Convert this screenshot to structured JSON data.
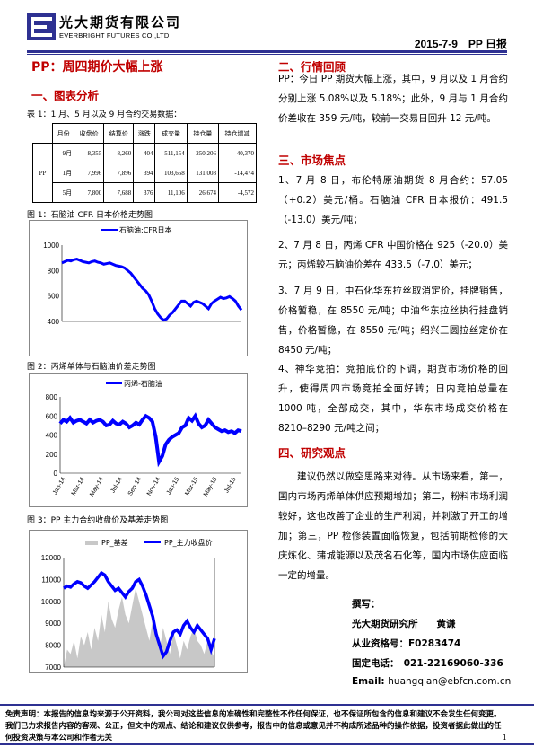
{
  "header": {
    "company_cn": "光大期货有限公司",
    "company_en": "EVERBRIGHT FUTURES CO.,LTD",
    "date_product": "2015-7-9　PP 日报"
  },
  "title": "PP：周四期价大幅上涨",
  "section1": {
    "heading": "一、图表分析",
    "table_caption": "表 1：1 月、5 月以及 9 月合约交易数据：",
    "table": {
      "headers": [
        "月份",
        "收盘价",
        "结算价",
        "涨跌",
        "成交量",
        "持仓量",
        "持仓增减"
      ],
      "row_label": "PP",
      "rows": [
        [
          "9月",
          "8,355",
          "8,260",
          "404",
          "511,154",
          "250,206",
          "-40,370"
        ],
        [
          "1月",
          "7,996",
          "7,896",
          "394",
          "103,658",
          "131,008",
          "-14,474"
        ],
        [
          "5月",
          "7,800",
          "7,688",
          "376",
          "11,106",
          "26,674",
          "-4,572"
        ]
      ]
    },
    "fig1_caption": "图 1：石脑油 CFR 日本价格走势图",
    "fig2_caption": "图 2：丙烯单体与石脑油价差走势图",
    "fig3_caption": "图 3：PP 主力合约收盘价及基差走势图"
  },
  "section2": {
    "heading": "二、行情回顾",
    "text": "PP：今日 PP 期货大幅上涨，其中，9 月以及 1 月合约分别上涨 5.08%以及 5.18%；此外，9 月与 1 月合约价差收在 359 元/吨，较前一交易日回升 12 元/吨。"
  },
  "section3": {
    "heading": "三、市场焦点",
    "items": [
      "1、7 月 8 日，布伦特原油期货 8 月合约：57.05（+0.2）美元/桶。石脑油 CFR 日本报价：491.5（-13.0）美元/吨；",
      "2、7 月 8 日，丙烯 CFR 中国价格在 925（-20.0）美元；丙烯较石脑油价差在 433.5（-7.0）美元；",
      "3、7 月 9 日，中石化华东拉丝取消定价，挂牌销售，价格暂稳，在 8550 元/吨；中油华东拉丝执行挂盘销售，价格暂稳，在 8550 元/吨；绍兴三圆拉丝定价在 8450 元/吨；",
      "4、神华竞拍：竞拍底价的下调，期货市场价格的回升，使得周四市场竞拍全面好转；日内竞拍总量在 1000 吨，全部成交，其中，华东市场成交价格在 8210–8290 元/吨之间；"
    ]
  },
  "section4": {
    "heading": "四、研究观点",
    "text": "建议仍然以做空思路来对待。从市场来看，第一，国内市场丙烯单体供应预期增加；第二，粉料市场利润较好，这也改善了企业的生产利润，并刺激了开工的增加；第三，PP 检修装置面临恢复，包括前期检修的大庆炼化、蒲城能源以及茂名石化等，国内市场供应面临一定的增量。"
  },
  "signature": {
    "label": "撰写：",
    "org": "光大期货研究所　　黄谦",
    "license": "从业资格号：F0283474",
    "phone": "固定电话：　021-22169060-336",
    "email_label": "Email:",
    "email": "huangqian@ebfcn.com.cn"
  },
  "footer": {
    "text": "免责声明：本报告的信息均来源于公开资料，我公司对这些信息的准确性和完整性不作任何保证，也不保证所包含的信息和建议不会发生任何变更。我们已力求报告内容的客观、公正，但文中的观点、结论和建议仅供参考，报告中的信息或意见并不构成所述品种的操作依据，投资者据此做出的任何投资决策与本公司和作者无关",
    "page": "1"
  },
  "chart_data": [
    {
      "type": "line",
      "legend": [
        "石脑油:CFR日本"
      ],
      "ylim": [
        400,
        1000
      ],
      "yticks": [
        400,
        600,
        800,
        1000
      ],
      "series": [
        {
          "name": "石脑油:CFR日本",
          "color": "#0000ff",
          "values": [
            860,
            870,
            880,
            875,
            885,
            890,
            880,
            870,
            865,
            860,
            870,
            875,
            865,
            860,
            850,
            855,
            860,
            850,
            840,
            835,
            830,
            820,
            800,
            780,
            750,
            720,
            690,
            660,
            640,
            610,
            560,
            500,
            460,
            430,
            410,
            420,
            450,
            470,
            500,
            530,
            560,
            560,
            540,
            520,
            550,
            560,
            550,
            540,
            520,
            500,
            540,
            560,
            575,
            590,
            580,
            585,
            595,
            580,
            560,
            520,
            490
          ]
        }
      ]
    },
    {
      "type": "line",
      "legend": [
        "丙烯-石脑油"
      ],
      "ylim": [
        0,
        800
      ],
      "yticks": [
        0,
        200,
        400,
        600,
        800
      ],
      "xticks": [
        "Jan-14",
        "Mar-14",
        "May-14",
        "Jul-14",
        "Sep-14",
        "Nov-14",
        "Jan-15",
        "Mar-15",
        "May-15",
        "Jul-15"
      ],
      "series": [
        {
          "name": "丙烯-石脑油",
          "color": "#0000ff",
          "values": [
            520,
            560,
            540,
            580,
            530,
            550,
            560,
            540,
            520,
            560,
            530,
            550,
            560,
            540,
            500,
            510,
            550,
            520,
            510,
            540,
            520,
            480,
            500,
            530,
            510,
            560,
            600,
            580,
            540,
            380,
            120,
            180,
            300,
            350,
            380,
            400,
            420,
            480,
            500,
            580,
            550,
            600,
            520,
            480,
            500,
            560,
            520,
            480,
            460,
            440,
            450,
            430,
            440,
            420,
            450,
            440
          ]
        }
      ]
    },
    {
      "type": "line",
      "legend": [
        "PP_基差",
        "PP_主力收盘价"
      ],
      "ylim": [
        7000,
        12000
      ],
      "yticks": [
        7000,
        8000,
        9000,
        10000,
        11000,
        12000
      ],
      "series": [
        {
          "name": "PP_基差",
          "color": "#c8c8c8",
          "values": [
            0,
            400,
            300,
            600,
            200,
            700,
            500,
            800,
            400,
            900,
            600,
            1200,
            800,
            1500,
            1100,
            900,
            1300,
            1600,
            1200,
            1000,
            1400,
            1800,
            1500,
            1200,
            900,
            600,
            1100,
            700,
            400,
            900,
            600,
            300,
            800,
            500,
            200,
            600,
            400,
            700,
            900,
            600,
            500,
            300,
            600,
            400,
            200
          ]
        },
        {
          "name": "PP_主力收盘价",
          "color": "#0000ff",
          "values": [
            10600,
            10700,
            10650,
            10800,
            10900,
            10850,
            10700,
            10600,
            10750,
            10900,
            11100,
            11300,
            11200,
            10900,
            10700,
            10500,
            10600,
            10400,
            10200,
            10450,
            10600,
            10900,
            11000,
            10700,
            10300,
            9800,
            9300,
            8500,
            8000,
            7500,
            7700,
            8200,
            8600,
            8700,
            8500,
            8900,
            9100,
            8800,
            8600,
            8900,
            8700,
            8500,
            8300,
            7800,
            8300
          ]
        }
      ]
    }
  ]
}
